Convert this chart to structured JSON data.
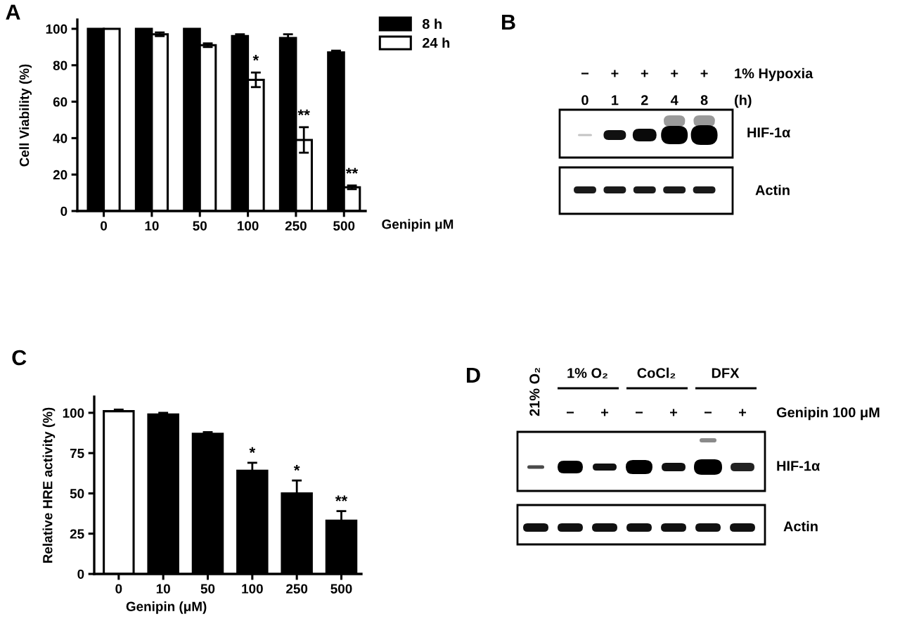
{
  "chart_data": [
    {
      "type": "bar",
      "title": "A",
      "categories": [
        "0",
        "10",
        "50",
        "100",
        "250",
        "500"
      ],
      "xlabel": "Genipin μM",
      "ylabel": "Cell Viability (%)",
      "ylim": [
        0,
        105
      ],
      "yticks": [
        0,
        20,
        40,
        60,
        80,
        100
      ],
      "legend": "top right",
      "series": [
        {
          "name": "8 h",
          "color": "#000000",
          "values": [
            100,
            100,
            100,
            96,
            95,
            87
          ],
          "errors": [
            null,
            null,
            null,
            1,
            2,
            1
          ]
        },
        {
          "name": "24 h",
          "color": "#ffffff",
          "values": [
            100,
            97,
            91,
            72,
            39,
            13
          ],
          "errors": [
            null,
            1,
            1,
            4,
            7,
            1
          ]
        }
      ],
      "annotations": [
        {
          "text": "*",
          "x": "100",
          "y": 78
        },
        {
          "text": "**",
          "x": "250",
          "y": 48
        },
        {
          "text": "**",
          "x": "500",
          "y": 16
        }
      ]
    },
    {
      "type": "other",
      "title": "B",
      "categories": [
        "0",
        "1",
        "2",
        "4",
        "8"
      ],
      "annotations": [
        "−",
        "+",
        "+",
        "+",
        "+",
        "1% Hypoxia",
        "(h)",
        "HIF-1α",
        "Actin"
      ]
    },
    {
      "type": "bar",
      "title": "C",
      "categories": [
        "0",
        "10",
        "50",
        "100",
        "250",
        "500"
      ],
      "xlabel": "Genipin (μM)",
      "ylabel": "Relative HRE activity (%)",
      "ylim": [
        0,
        110
      ],
      "yticks": [
        0,
        25,
        50,
        75,
        100
      ],
      "values": [
        101,
        99,
        87,
        64,
        50,
        33
      ],
      "colors": [
        "#ffffff",
        "#000000",
        "#000000",
        "#000000",
        "#000000",
        "#000000"
      ],
      "errors": [
        [
          101,
          102
        ],
        [
          99,
          100
        ],
        [
          87,
          88
        ],
        [
          64,
          69
        ],
        [
          50,
          58
        ],
        [
          33,
          39
        ]
      ],
      "annotations": [
        {
          "text": "*",
          "x": "100",
          "y": 70
        },
        {
          "text": "*",
          "x": "250",
          "y": 59
        },
        {
          "text": "**",
          "x": "500",
          "y": 40
        }
      ]
    },
    {
      "type": "other",
      "title": "D",
      "categories": [
        "21% O₂",
        "−",
        "+",
        "−",
        "+",
        "−",
        "+"
      ],
      "annotations": [
        "1% O₂",
        "CoCl₂",
        "DFX",
        "Genipin 100 μM",
        "HIF-1α",
        "Actin"
      ]
    }
  ]
}
